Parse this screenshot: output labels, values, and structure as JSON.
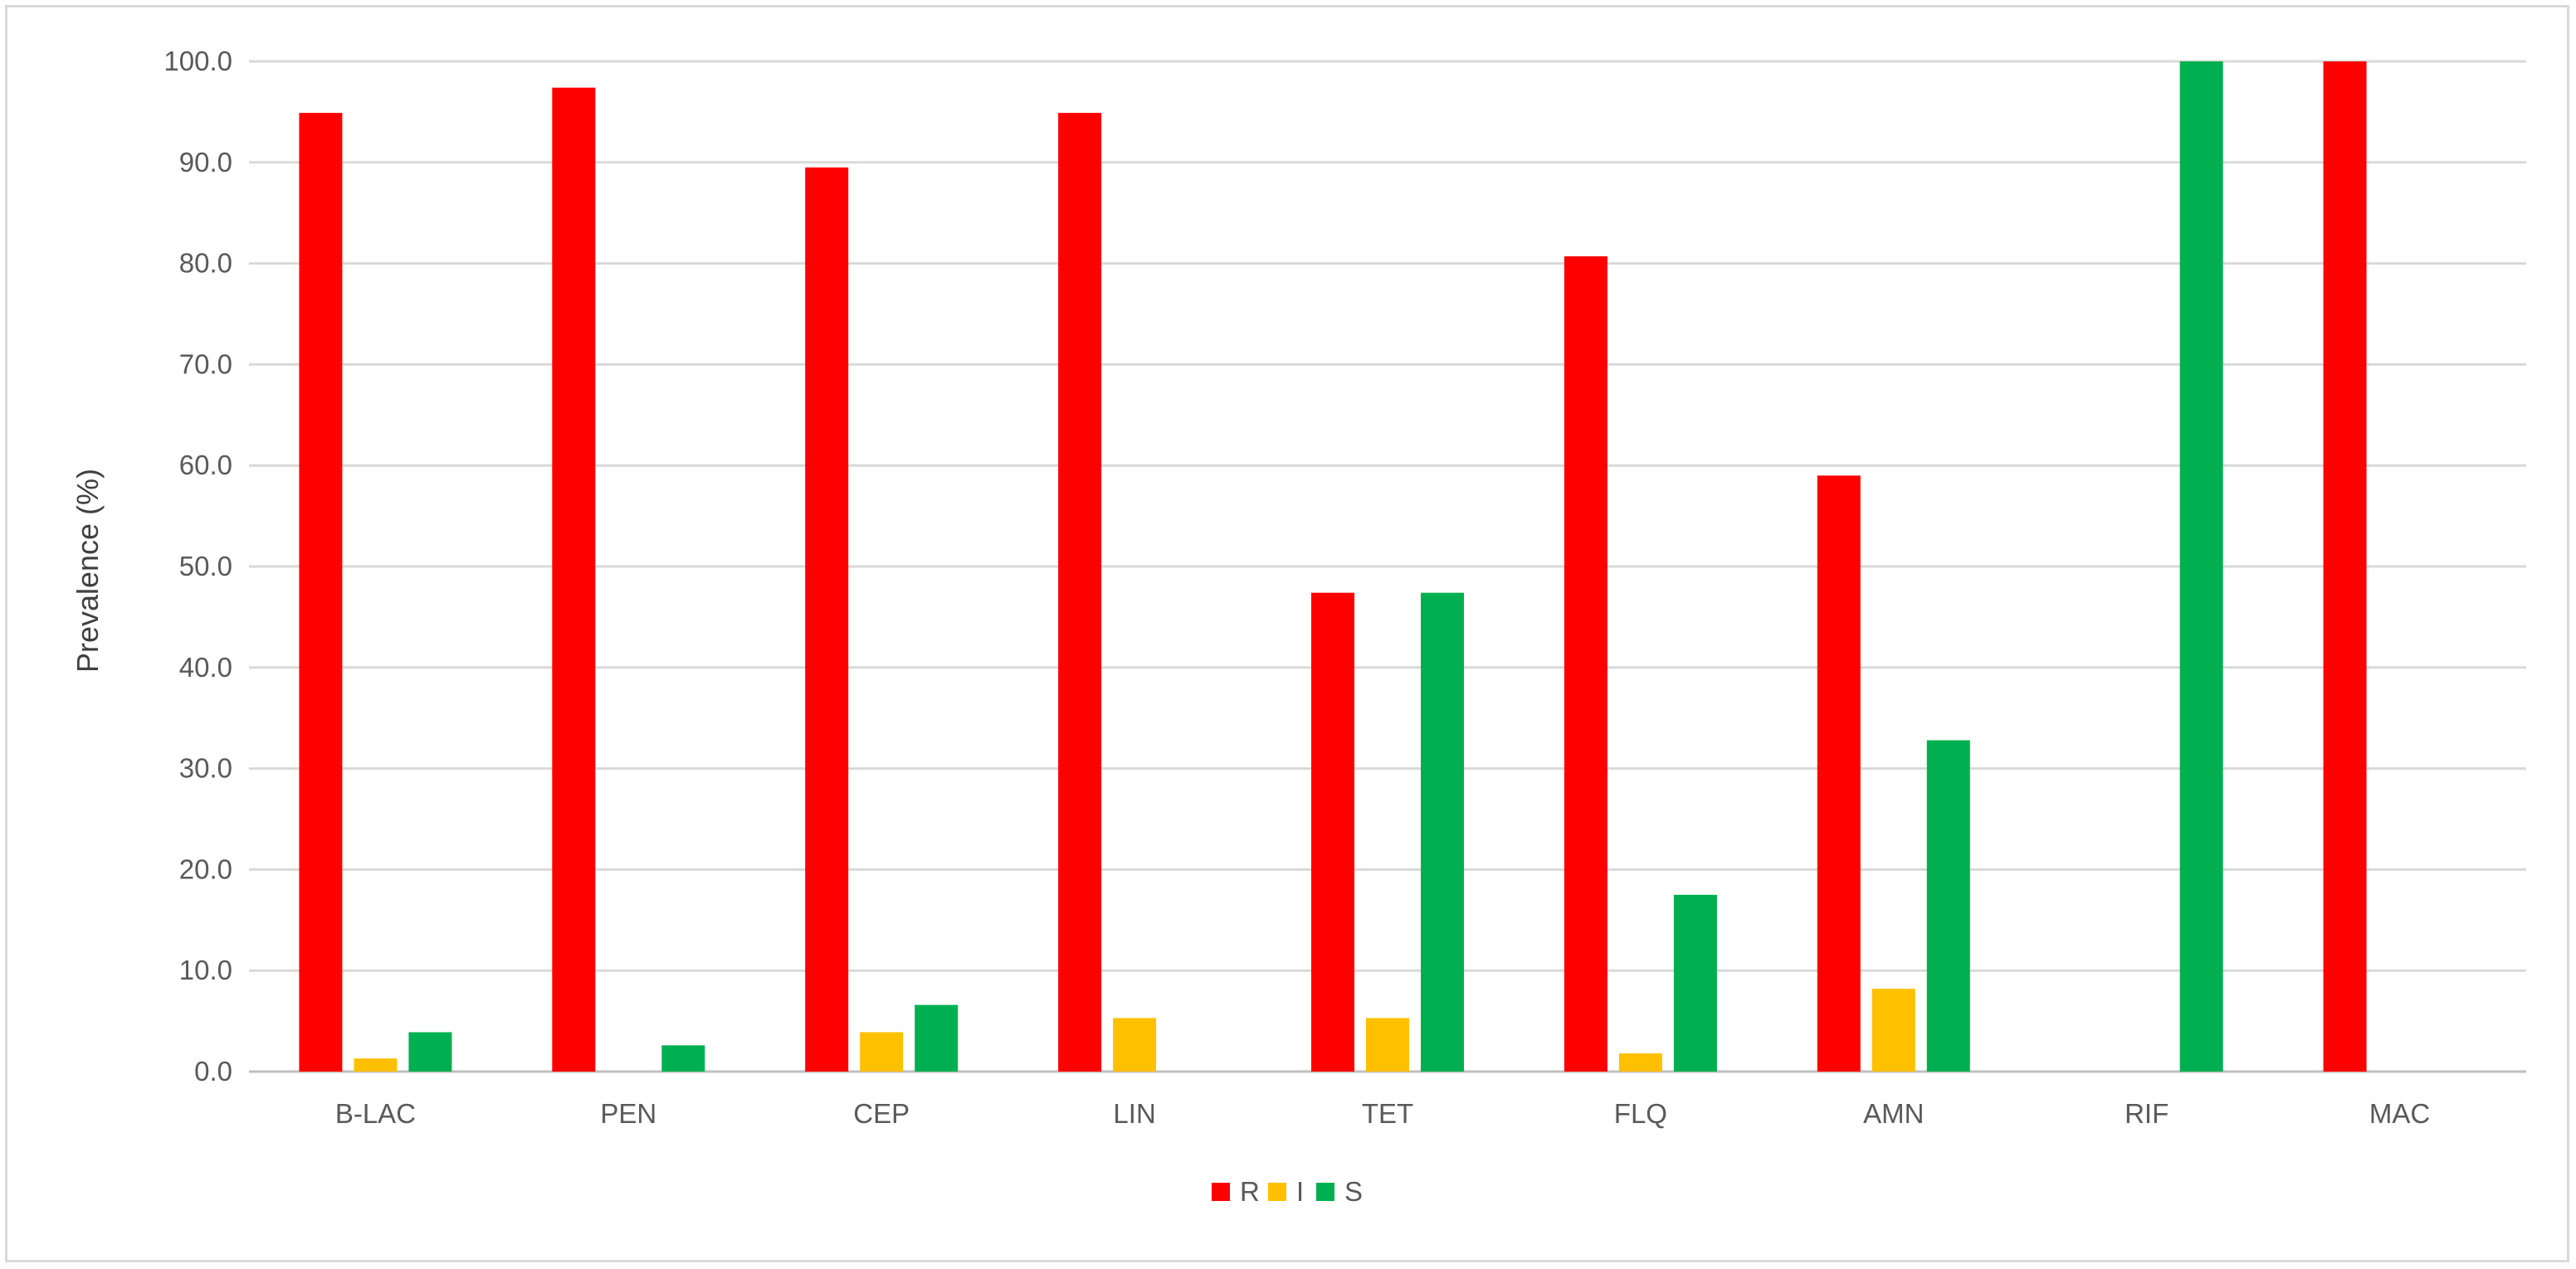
{
  "chart_data": {
    "type": "bar",
    "title": "",
    "xlabel": "",
    "ylabel": "Prevalence (%)",
    "ylim": [
      0,
      100
    ],
    "yticks": [
      "0.0",
      "10.0",
      "20.0",
      "30.0",
      "40.0",
      "50.0",
      "60.0",
      "70.0",
      "80.0",
      "90.0",
      "100.0"
    ],
    "grid": true,
    "legend_position": "bottom",
    "categories": [
      "B-LAC",
      "PEN",
      "CEP",
      "LIN",
      "TET",
      "FLQ",
      "AMN",
      "RIF",
      "MAC"
    ],
    "series": [
      {
        "name": "R",
        "color": "#ff0000",
        "values": [
          94.9,
          97.4,
          89.5,
          94.9,
          47.4,
          80.7,
          59.0,
          0.0,
          100.0
        ]
      },
      {
        "name": "I",
        "color": "#ffc000",
        "values": [
          1.3,
          0.0,
          3.9,
          5.3,
          5.3,
          1.8,
          8.2,
          0.0,
          0.0
        ]
      },
      {
        "name": "S",
        "color": "#00b050",
        "values": [
          3.9,
          2.6,
          6.6,
          0.0,
          47.4,
          17.5,
          32.8,
          100.0,
          0.0
        ]
      }
    ]
  }
}
